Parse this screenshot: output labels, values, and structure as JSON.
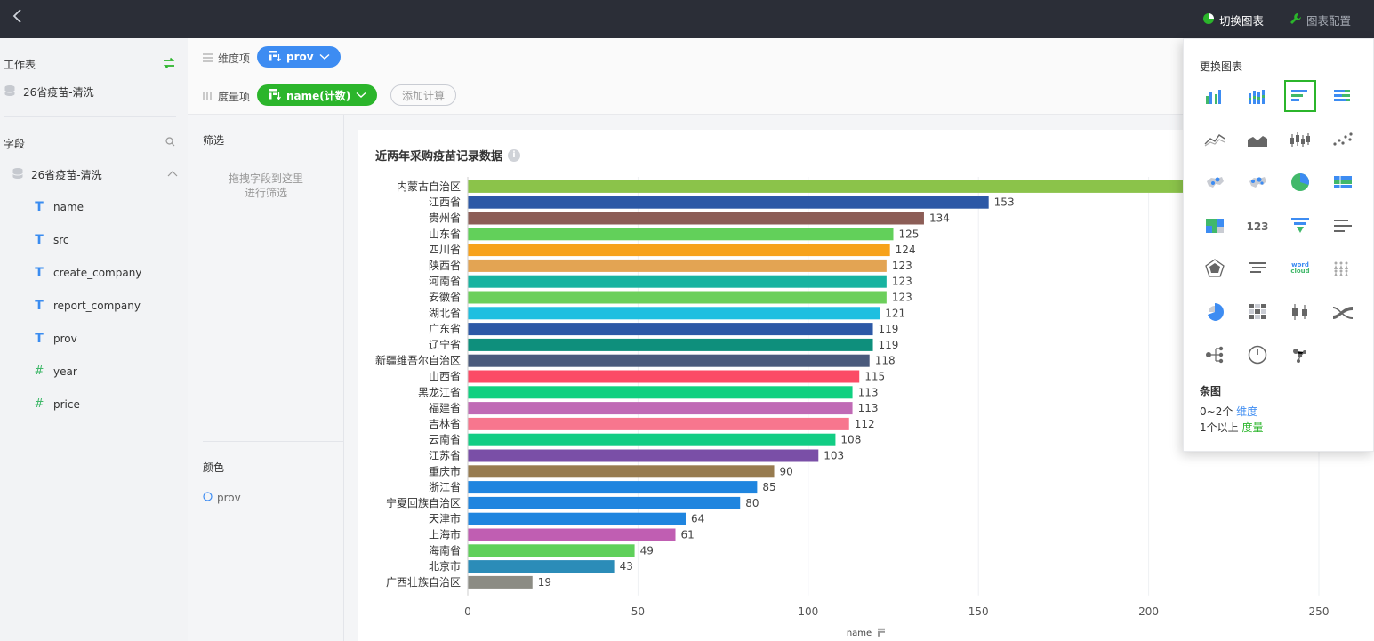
{
  "topbar": {
    "switch_chart": "切换图表",
    "chart_config": "图表配置"
  },
  "sidebar": {
    "worksheet_label": "工作表",
    "dataset_name": "26省疫苗-清洗",
    "fields_label": "字段",
    "table_name": "26省疫苗-清洗",
    "fields": [
      {
        "name": "name",
        "type": "text"
      },
      {
        "name": "src",
        "type": "text"
      },
      {
        "name": "create_company",
        "type": "text"
      },
      {
        "name": "report_company",
        "type": "text"
      },
      {
        "name": "prov",
        "type": "text"
      },
      {
        "name": "year",
        "type": "number"
      },
      {
        "name": "price",
        "type": "number"
      }
    ]
  },
  "shelves": {
    "dimension_label": "维度项",
    "dimension_pill": "prov",
    "measure_label": "度量项",
    "measure_pill": "name(计数)",
    "add_calc": "添加计算"
  },
  "filter_panel": {
    "filter_title": "筛选",
    "hint_line1": "拖拽字段到这里",
    "hint_line2": "进行筛选",
    "color_title": "颜色",
    "color_field": "prov"
  },
  "chart_panel": {
    "title": "近两年采购疫苗记录数据",
    "x_axis_label": "name"
  },
  "chart_data": {
    "type": "bar",
    "orientation": "horizontal",
    "title": "近两年采购疫苗记录数据",
    "xlabel": "name",
    "xlim": [
      0,
      250
    ],
    "xticks": [
      0,
      50,
      100,
      150,
      200,
      250
    ],
    "grid": true,
    "categories": [
      "内蒙古自治区",
      "江西省",
      "贵州省",
      "山东省",
      "四川省",
      "陕西省",
      "河南省",
      "安徽省",
      "湖北省",
      "广东省",
      "辽宁省",
      "新疆维吾尔自治区",
      "山西省",
      "黑龙江省",
      "福建省",
      "吉林省",
      "云南省",
      "江苏省",
      "重庆市",
      "浙江省",
      "宁夏回族自治区",
      "天津市",
      "上海市",
      "海南省",
      "北京市",
      "广西壮族自治区"
    ],
    "values": [
      null,
      153,
      134,
      125,
      124,
      123,
      123,
      123,
      121,
      119,
      119,
      118,
      115,
      113,
      113,
      112,
      108,
      103,
      90,
      85,
      80,
      64,
      61,
      49,
      43,
      19
    ],
    "colors": [
      "#8bc34a",
      "#2c58a6",
      "#8c5d56",
      "#62d05a",
      "#f7a21b",
      "#e3a453",
      "#17b3a0",
      "#6ccf5b",
      "#1ebfe0",
      "#2c58a6",
      "#0e8f7c",
      "#4a5a7c",
      "#fb4b66",
      "#10d080",
      "#c06ab5",
      "#f7768e",
      "#12cd84",
      "#7a4fa7",
      "#977b4f",
      "#1f85df",
      "#1f85df",
      "#1f85df",
      "#c05eb2",
      "#5fd05a",
      "#2b8cb8",
      "#8c8c84"
    ]
  },
  "popover": {
    "title": "更换图表",
    "icons": [
      "grouped-bar-chart-icon",
      "stacked-bar-chart-icon",
      "horizontal-bar-chart-icon",
      "stacked-horizontal-bar-chart-icon",
      "line-chart-icon",
      "area-chart-icon",
      "candlestick-chart-icon",
      "scatter-chart-icon",
      "map-chart-icon",
      "bubble-map-icon",
      "pie-chart-icon",
      "table-chart-icon",
      "treemap-chart-icon",
      "kpi-number-icon",
      "funnel-chart-icon",
      "bar-list-icon",
      "radar-chart-icon",
      "sankey-chart-icon",
      "word-cloud-icon",
      "pictorial-chart-icon",
      "rose-chart-icon",
      "heatmap-chart-icon",
      "boxplot-chart-icon",
      "ribbon-chart-icon",
      "tree-chart-icon",
      "gauge-chart-icon",
      "network-chart-icon"
    ],
    "kpi_text": "123",
    "wordcloud_text": "word cloud",
    "selected_name": "条图",
    "req_dim_prefix": "0~2个",
    "req_dim_link": "维度",
    "req_measure_prefix": "1个以上",
    "req_measure_link": "度量"
  }
}
